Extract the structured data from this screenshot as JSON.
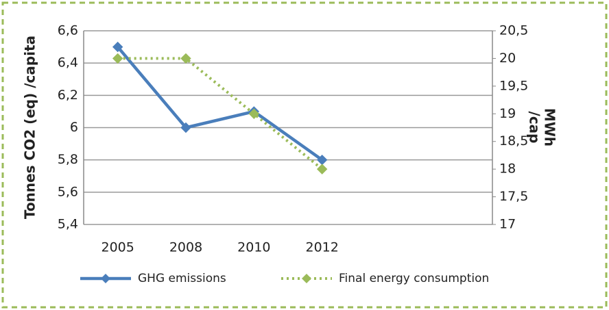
{
  "chart_data": {
    "type": "line",
    "categories": [
      "2005",
      "2008",
      "2010",
      "2012",
      null,
      null
    ],
    "ylabel": "Tonnes CO2 (eq) /capita",
    "y2label": [
      "MWh",
      "/cap"
    ],
    "ylim": [
      5.4,
      6.6
    ],
    "yticks": [
      {
        "value": 5.4,
        "label": "5,4"
      },
      {
        "value": 5.6,
        "label": "5,6"
      },
      {
        "value": 5.8,
        "label": "5,8"
      },
      6,
      {
        "value": 6.2,
        "label": "6,2"
      },
      {
        "value": 6.4,
        "label": "6,4"
      },
      {
        "value": 6.6,
        "label": "6,6"
      }
    ],
    "y2lim": [
      17,
      20.5
    ],
    "y2ticks": [
      17,
      {
        "value": 17.5,
        "label": "17,5"
      },
      18,
      {
        "value": 18.5,
        "label": "18,5"
      },
      19,
      {
        "value": 19.5,
        "label": "19,5"
      },
      20,
      {
        "value": 20.5,
        "label": "20,5"
      }
    ],
    "grid": true,
    "legend": "bottom",
    "series": [
      {
        "name": "GHG emissions",
        "color": "#4a7ebb",
        "values": [
          6.5,
          6.0,
          6.1,
          5.8,
          null,
          null
        ]
      },
      {
        "name": "Final energy consumption",
        "color": "#9bbb59",
        "axis": "y2",
        "values": [
          20,
          20,
          19,
          18,
          null,
          null
        ]
      }
    ]
  }
}
